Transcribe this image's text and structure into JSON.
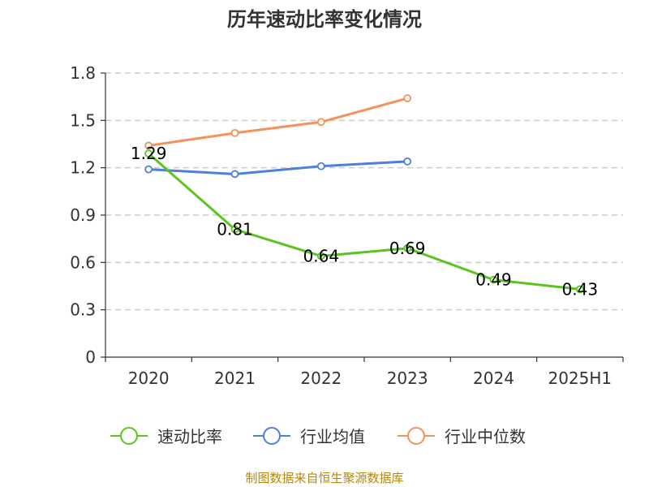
{
  "chart_data": {
    "type": "line",
    "title": "历年速动比率变化情况",
    "categories": [
      "2020",
      "2021",
      "2022",
      "2023",
      "2024",
      "2025H1"
    ],
    "ylim": [
      0,
      1.8
    ],
    "yticks": [
      "0",
      "0.3",
      "0.6",
      "0.9",
      "1.2",
      "1.5",
      "1.8"
    ],
    "grid": true,
    "legend_position": "bottom",
    "series": [
      {
        "name": "速动比率",
        "color": "#5bc41f",
        "values": [
          1.29,
          0.81,
          0.64,
          0.69,
          0.49,
          0.43
        ],
        "labels": [
          "1.29",
          "0.81",
          "0.64",
          "0.69",
          "0.49",
          "0.43"
        ]
      },
      {
        "name": "行业均值",
        "color": "#4f7fdb",
        "values": [
          1.19,
          1.16,
          1.21,
          1.24,
          null,
          null
        ]
      },
      {
        "name": "行业中位数",
        "color": "#f5925a",
        "values": [
          1.34,
          1.42,
          1.49,
          1.64,
          null,
          null
        ]
      }
    ]
  },
  "footer": {
    "source": "制图数据来自恒生聚源数据库"
  }
}
